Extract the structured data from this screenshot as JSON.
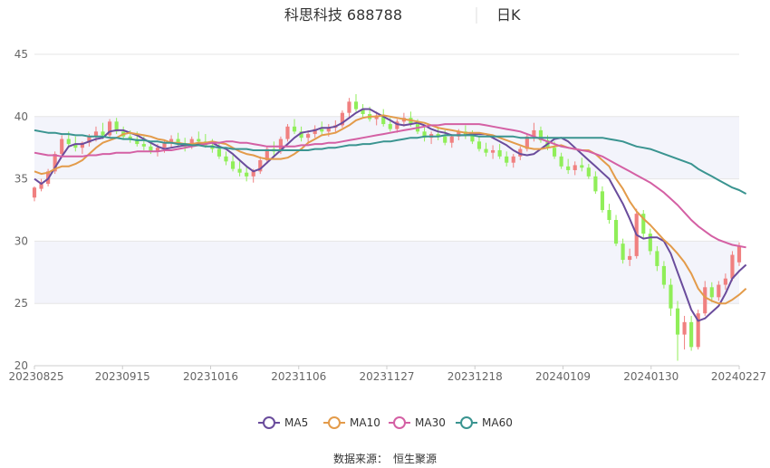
{
  "header": {
    "title": "科思科技 688788",
    "period": "日K"
  },
  "footer": {
    "source_label": "数据来源：",
    "source_name": "恒生聚源"
  },
  "chart_data": {
    "type": "candlestick",
    "ylim": [
      20,
      45
    ],
    "yticks": [
      20,
      25,
      30,
      35,
      40,
      45
    ],
    "shaded_bands": [
      [
        25,
        30
      ],
      [
        35,
        40
      ]
    ],
    "x_tick_labels": [
      "20230825",
      "20230915",
      "20231016",
      "20231106",
      "20231127",
      "20231218",
      "20240109",
      "20240130",
      "20240227"
    ],
    "colors": {
      "up": "#f08080",
      "down": "#90ee59",
      "MA5": "#6a4c9c",
      "MA10": "#e39b4a",
      "MA30": "#d460a4",
      "MA60": "#3a9490",
      "band": "#f3f4fb",
      "grid": "#e6e6e6"
    },
    "series": [
      {
        "name": "MA5",
        "values": [
          35.0,
          34.6,
          35.0,
          35.9,
          36.8,
          37.6,
          37.8,
          37.8,
          38.0,
          38.2,
          38.3,
          38.8,
          38.9,
          38.9,
          38.7,
          38.5,
          38.2,
          37.9,
          37.6,
          37.4,
          37.5,
          37.6,
          37.7,
          37.7,
          37.8,
          37.9,
          37.9,
          37.6,
          37.4,
          37.0,
          36.5,
          36.0,
          35.6,
          35.8,
          36.3,
          36.8,
          37.3,
          37.8,
          38.3,
          38.7,
          38.8,
          38.9,
          39.1,
          39.1,
          39.2,
          39.5,
          39.9,
          40.3,
          40.6,
          40.6,
          40.3,
          40.0,
          39.7,
          39.4,
          39.3,
          39.4,
          39.5,
          39.3,
          39.0,
          38.8,
          38.7,
          38.5,
          38.5,
          38.5,
          38.6,
          38.6,
          38.6,
          38.3,
          38.0,
          37.7,
          37.3,
          37.0,
          36.9,
          37.0,
          37.4,
          37.8,
          38.2,
          38.3,
          38.0,
          37.5,
          37.0,
          36.5,
          36.0,
          35.5,
          35.0,
          34.0,
          33.0,
          31.8,
          30.5,
          30.2,
          30.3,
          30.3,
          30.0,
          29.0,
          27.5,
          26.0,
          24.5,
          23.6,
          23.8,
          24.3,
          24.8,
          25.8,
          27.0,
          27.6,
          28.1
        ]
      },
      {
        "name": "MA10",
        "values": [
          35.6,
          35.4,
          35.5,
          35.8,
          36.0,
          36.0,
          36.2,
          36.5,
          37.0,
          37.5,
          37.9,
          38.1,
          38.3,
          38.6,
          38.7,
          38.6,
          38.5,
          38.4,
          38.2,
          38.1,
          37.9,
          37.9,
          37.8,
          37.8,
          37.9,
          37.9,
          38.0,
          37.9,
          37.8,
          37.5,
          37.2,
          37.0,
          36.9,
          36.7,
          36.6,
          36.6,
          36.6,
          36.7,
          37.0,
          37.4,
          37.9,
          38.2,
          38.5,
          38.6,
          38.7,
          39.0,
          39.3,
          39.7,
          39.9,
          40.0,
          40.0,
          40.1,
          40.0,
          39.9,
          39.8,
          39.7,
          39.6,
          39.5,
          39.3,
          39.1,
          39.0,
          38.9,
          38.8,
          38.7,
          38.7,
          38.7,
          38.6,
          38.5,
          38.3,
          38.1,
          37.9,
          37.7,
          37.5,
          37.4,
          37.4,
          37.5,
          37.6,
          37.7,
          37.5,
          37.4,
          37.3,
          37.3,
          37.0,
          36.5,
          36.0,
          35.0,
          34.2,
          33.2,
          32.4,
          31.8,
          31.3,
          30.7,
          30.1,
          29.6,
          29.0,
          28.3,
          27.4,
          26.2,
          25.5,
          25.2,
          25.0,
          25.0,
          25.3,
          25.7,
          26.2
        ]
      },
      {
        "name": "MA30",
        "values": [
          37.1,
          37.0,
          36.9,
          36.9,
          36.8,
          36.8,
          36.8,
          36.8,
          36.9,
          36.9,
          37.0,
          37.0,
          37.1,
          37.1,
          37.1,
          37.2,
          37.2,
          37.2,
          37.2,
          37.3,
          37.3,
          37.4,
          37.5,
          37.6,
          37.7,
          37.8,
          37.9,
          37.9,
          38.0,
          38.0,
          37.9,
          37.9,
          37.8,
          37.7,
          37.6,
          37.6,
          37.6,
          37.6,
          37.6,
          37.7,
          37.7,
          37.8,
          37.8,
          37.9,
          37.9,
          38.0,
          38.1,
          38.2,
          38.3,
          38.4,
          38.5,
          38.6,
          38.7,
          38.8,
          38.9,
          39.0,
          39.1,
          39.2,
          39.3,
          39.3,
          39.4,
          39.4,
          39.4,
          39.4,
          39.4,
          39.4,
          39.3,
          39.2,
          39.1,
          39.0,
          38.9,
          38.8,
          38.6,
          38.4,
          38.2,
          38.0,
          37.8,
          37.6,
          37.5,
          37.4,
          37.3,
          37.2,
          37.0,
          36.8,
          36.5,
          36.2,
          35.9,
          35.6,
          35.3,
          35.0,
          34.7,
          34.3,
          33.9,
          33.4,
          32.9,
          32.3,
          31.7,
          31.2,
          30.8,
          30.4,
          30.1,
          29.9,
          29.7,
          29.6,
          29.5
        ]
      },
      {
        "name": "MA60",
        "values": [
          38.9,
          38.8,
          38.7,
          38.7,
          38.6,
          38.6,
          38.5,
          38.5,
          38.4,
          38.4,
          38.4,
          38.3,
          38.3,
          38.2,
          38.2,
          38.1,
          38.1,
          38.0,
          38.0,
          37.9,
          37.9,
          37.8,
          37.8,
          37.7,
          37.7,
          37.6,
          37.6,
          37.5,
          37.5,
          37.4,
          37.4,
          37.4,
          37.3,
          37.3,
          37.3,
          37.3,
          37.3,
          37.3,
          37.3,
          37.3,
          37.3,
          37.4,
          37.4,
          37.5,
          37.5,
          37.6,
          37.7,
          37.7,
          37.8,
          37.8,
          37.9,
          38.0,
          38.0,
          38.1,
          38.2,
          38.3,
          38.3,
          38.4,
          38.4,
          38.4,
          38.5,
          38.5,
          38.5,
          38.5,
          38.5,
          38.4,
          38.4,
          38.4,
          38.4,
          38.4,
          38.4,
          38.3,
          38.3,
          38.3,
          38.3,
          38.3,
          38.3,
          38.3,
          38.3,
          38.3,
          38.3,
          38.3,
          38.3,
          38.3,
          38.2,
          38.1,
          38.0,
          37.8,
          37.6,
          37.5,
          37.4,
          37.2,
          37.0,
          36.8,
          36.6,
          36.4,
          36.2,
          35.8,
          35.5,
          35.2,
          34.9,
          34.6,
          34.3,
          34.1,
          33.8
        ]
      }
    ],
    "candles": [
      {
        "o": 33.5,
        "h": 34.4,
        "l": 33.2,
        "c": 34.3
      },
      {
        "o": 34.2,
        "h": 35.0,
        "l": 34.0,
        "c": 34.6
      },
      {
        "o": 34.6,
        "h": 35.8,
        "l": 34.4,
        "c": 35.6
      },
      {
        "o": 35.6,
        "h": 37.2,
        "l": 35.4,
        "c": 37.0
      },
      {
        "o": 37.0,
        "h": 38.5,
        "l": 36.8,
        "c": 38.2
      },
      {
        "o": 38.2,
        "h": 38.8,
        "l": 37.5,
        "c": 37.8
      },
      {
        "o": 37.8,
        "h": 38.4,
        "l": 37.2,
        "c": 37.5
      },
      {
        "o": 37.5,
        "h": 38.0,
        "l": 37.0,
        "c": 37.9
      },
      {
        "o": 37.9,
        "h": 38.6,
        "l": 37.6,
        "c": 38.4
      },
      {
        "o": 38.4,
        "h": 39.2,
        "l": 38.0,
        "c": 38.8
      },
      {
        "o": 38.8,
        "h": 39.5,
        "l": 38.2,
        "c": 38.5
      },
      {
        "o": 38.5,
        "h": 39.8,
        "l": 38.3,
        "c": 39.6
      },
      {
        "o": 39.6,
        "h": 39.9,
        "l": 38.6,
        "c": 38.8
      },
      {
        "o": 38.8,
        "h": 39.2,
        "l": 38.2,
        "c": 38.4
      },
      {
        "o": 38.4,
        "h": 38.9,
        "l": 37.9,
        "c": 38.2
      },
      {
        "o": 38.2,
        "h": 38.8,
        "l": 37.6,
        "c": 37.8
      },
      {
        "o": 37.8,
        "h": 38.4,
        "l": 37.3,
        "c": 37.6
      },
      {
        "o": 37.6,
        "h": 38.0,
        "l": 37.0,
        "c": 37.2
      },
      {
        "o": 37.2,
        "h": 37.8,
        "l": 36.8,
        "c": 37.5
      },
      {
        "o": 37.5,
        "h": 38.1,
        "l": 37.1,
        "c": 37.9
      },
      {
        "o": 37.9,
        "h": 38.5,
        "l": 37.5,
        "c": 38.2
      },
      {
        "o": 38.2,
        "h": 38.7,
        "l": 37.6,
        "c": 37.8
      },
      {
        "o": 37.8,
        "h": 38.3,
        "l": 37.2,
        "c": 37.6
      },
      {
        "o": 37.6,
        "h": 38.4,
        "l": 37.4,
        "c": 38.2
      },
      {
        "o": 38.2,
        "h": 38.8,
        "l": 37.7,
        "c": 38.0
      },
      {
        "o": 38.0,
        "h": 38.6,
        "l": 37.5,
        "c": 37.7
      },
      {
        "o": 37.7,
        "h": 38.2,
        "l": 37.1,
        "c": 37.4
      },
      {
        "o": 37.4,
        "h": 37.9,
        "l": 36.6,
        "c": 36.8
      },
      {
        "o": 36.8,
        "h": 37.2,
        "l": 36.1,
        "c": 36.4
      },
      {
        "o": 36.4,
        "h": 36.9,
        "l": 35.6,
        "c": 35.8
      },
      {
        "o": 35.8,
        "h": 36.4,
        "l": 35.2,
        "c": 35.5
      },
      {
        "o": 35.5,
        "h": 36.0,
        "l": 34.8,
        "c": 35.2
      },
      {
        "o": 35.2,
        "h": 35.8,
        "l": 34.7,
        "c": 35.6
      },
      {
        "o": 35.6,
        "h": 36.8,
        "l": 35.4,
        "c": 36.5
      },
      {
        "o": 36.5,
        "h": 37.6,
        "l": 36.2,
        "c": 37.4
      },
      {
        "o": 37.4,
        "h": 38.0,
        "l": 36.8,
        "c": 37.2
      },
      {
        "o": 37.2,
        "h": 38.4,
        "l": 37.0,
        "c": 38.2
      },
      {
        "o": 38.2,
        "h": 39.4,
        "l": 38.0,
        "c": 39.2
      },
      {
        "o": 39.2,
        "h": 39.8,
        "l": 38.6,
        "c": 38.8
      },
      {
        "o": 38.8,
        "h": 39.2,
        "l": 38.0,
        "c": 38.3
      },
      {
        "o": 38.3,
        "h": 38.9,
        "l": 37.8,
        "c": 38.6
      },
      {
        "o": 38.6,
        "h": 39.3,
        "l": 38.3,
        "c": 39.0
      },
      {
        "o": 39.0,
        "h": 39.6,
        "l": 38.5,
        "c": 38.8
      },
      {
        "o": 38.8,
        "h": 39.4,
        "l": 38.4,
        "c": 39.1
      },
      {
        "o": 39.1,
        "h": 39.7,
        "l": 38.7,
        "c": 39.3
      },
      {
        "o": 39.3,
        "h": 40.5,
        "l": 39.1,
        "c": 40.3
      },
      {
        "o": 40.3,
        "h": 41.5,
        "l": 40.0,
        "c": 41.2
      },
      {
        "o": 41.2,
        "h": 41.8,
        "l": 40.4,
        "c": 40.6
      },
      {
        "o": 40.6,
        "h": 41.0,
        "l": 39.9,
        "c": 40.2
      },
      {
        "o": 40.2,
        "h": 40.8,
        "l": 39.6,
        "c": 39.8
      },
      {
        "o": 39.8,
        "h": 40.4,
        "l": 39.3,
        "c": 40.1
      },
      {
        "o": 40.1,
        "h": 40.6,
        "l": 39.2,
        "c": 39.4
      },
      {
        "o": 39.4,
        "h": 39.9,
        "l": 38.8,
        "c": 39.0
      },
      {
        "o": 39.0,
        "h": 39.8,
        "l": 38.7,
        "c": 39.6
      },
      {
        "o": 39.6,
        "h": 40.3,
        "l": 39.2,
        "c": 39.9
      },
      {
        "o": 39.9,
        "h": 40.4,
        "l": 39.2,
        "c": 39.4
      },
      {
        "o": 39.4,
        "h": 39.8,
        "l": 38.6,
        "c": 38.8
      },
      {
        "o": 38.8,
        "h": 39.2,
        "l": 38.0,
        "c": 38.3
      },
      {
        "o": 38.3,
        "h": 38.8,
        "l": 37.8,
        "c": 38.6
      },
      {
        "o": 38.6,
        "h": 39.1,
        "l": 38.1,
        "c": 38.4
      },
      {
        "o": 38.4,
        "h": 38.9,
        "l": 37.7,
        "c": 37.9
      },
      {
        "o": 37.9,
        "h": 38.6,
        "l": 37.5,
        "c": 38.4
      },
      {
        "o": 38.4,
        "h": 39.0,
        "l": 38.1,
        "c": 38.8
      },
      {
        "o": 38.8,
        "h": 39.3,
        "l": 38.2,
        "c": 38.5
      },
      {
        "o": 38.5,
        "h": 38.9,
        "l": 37.8,
        "c": 38.0
      },
      {
        "o": 38.0,
        "h": 38.4,
        "l": 37.2,
        "c": 37.4
      },
      {
        "o": 37.4,
        "h": 37.9,
        "l": 36.8,
        "c": 37.1
      },
      {
        "o": 37.1,
        "h": 37.7,
        "l": 36.6,
        "c": 37.3
      },
      {
        "o": 37.3,
        "h": 37.8,
        "l": 36.6,
        "c": 36.8
      },
      {
        "o": 36.8,
        "h": 37.2,
        "l": 36.0,
        "c": 36.3
      },
      {
        "o": 36.3,
        "h": 37.0,
        "l": 35.9,
        "c": 36.8
      },
      {
        "o": 36.8,
        "h": 37.6,
        "l": 36.5,
        "c": 37.4
      },
      {
        "o": 37.4,
        "h": 38.6,
        "l": 37.2,
        "c": 38.4
      },
      {
        "o": 38.4,
        "h": 39.5,
        "l": 38.0,
        "c": 38.9
      },
      {
        "o": 38.9,
        "h": 39.2,
        "l": 37.9,
        "c": 38.1
      },
      {
        "o": 38.1,
        "h": 38.5,
        "l": 37.3,
        "c": 37.5
      },
      {
        "o": 37.5,
        "h": 38.0,
        "l": 36.6,
        "c": 36.8
      },
      {
        "o": 36.8,
        "h": 37.1,
        "l": 35.8,
        "c": 36.0
      },
      {
        "o": 36.0,
        "h": 36.6,
        "l": 35.4,
        "c": 35.7
      },
      {
        "o": 35.7,
        "h": 36.4,
        "l": 35.3,
        "c": 36.1
      },
      {
        "o": 36.1,
        "h": 36.7,
        "l": 35.6,
        "c": 35.9
      },
      {
        "o": 35.9,
        "h": 36.2,
        "l": 35.0,
        "c": 35.2
      },
      {
        "o": 35.2,
        "h": 35.6,
        "l": 33.8,
        "c": 34.0
      },
      {
        "o": 34.0,
        "h": 34.4,
        "l": 32.3,
        "c": 32.5
      },
      {
        "o": 32.5,
        "h": 33.0,
        "l": 31.4,
        "c": 31.7
      },
      {
        "o": 31.7,
        "h": 32.1,
        "l": 29.6,
        "c": 29.8
      },
      {
        "o": 29.8,
        "h": 30.2,
        "l": 28.2,
        "c": 28.5
      },
      {
        "o": 28.5,
        "h": 29.4,
        "l": 28.0,
        "c": 28.8
      },
      {
        "o": 28.8,
        "h": 32.6,
        "l": 28.6,
        "c": 32.2
      },
      {
        "o": 32.2,
        "h": 32.5,
        "l": 30.2,
        "c": 30.6
      },
      {
        "o": 30.6,
        "h": 31.0,
        "l": 28.9,
        "c": 29.2
      },
      {
        "o": 29.2,
        "h": 29.6,
        "l": 27.6,
        "c": 28.0
      },
      {
        "o": 28.0,
        "h": 28.4,
        "l": 26.2,
        "c": 26.5
      },
      {
        "o": 26.5,
        "h": 27.0,
        "l": 24.0,
        "c": 24.6
      },
      {
        "o": 24.6,
        "h": 25.2,
        "l": 20.4,
        "c": 22.5
      },
      {
        "o": 22.5,
        "h": 24.0,
        "l": 21.3,
        "c": 23.5
      },
      {
        "o": 23.5,
        "h": 24.0,
        "l": 21.2,
        "c": 21.5
      },
      {
        "o": 21.5,
        "h": 24.5,
        "l": 21.3,
        "c": 24.2
      },
      {
        "o": 24.2,
        "h": 26.8,
        "l": 24.0,
        "c": 26.3
      },
      {
        "o": 26.3,
        "h": 26.7,
        "l": 25.1,
        "c": 25.5
      },
      {
        "o": 25.5,
        "h": 26.8,
        "l": 25.2,
        "c": 26.5
      },
      {
        "o": 26.5,
        "h": 27.4,
        "l": 26.1,
        "c": 27.0
      },
      {
        "o": 27.0,
        "h": 29.2,
        "l": 26.8,
        "c": 28.9
      },
      {
        "o": 28.3,
        "h": 29.9,
        "l": 28.0,
        "c": 29.6
      }
    ]
  }
}
